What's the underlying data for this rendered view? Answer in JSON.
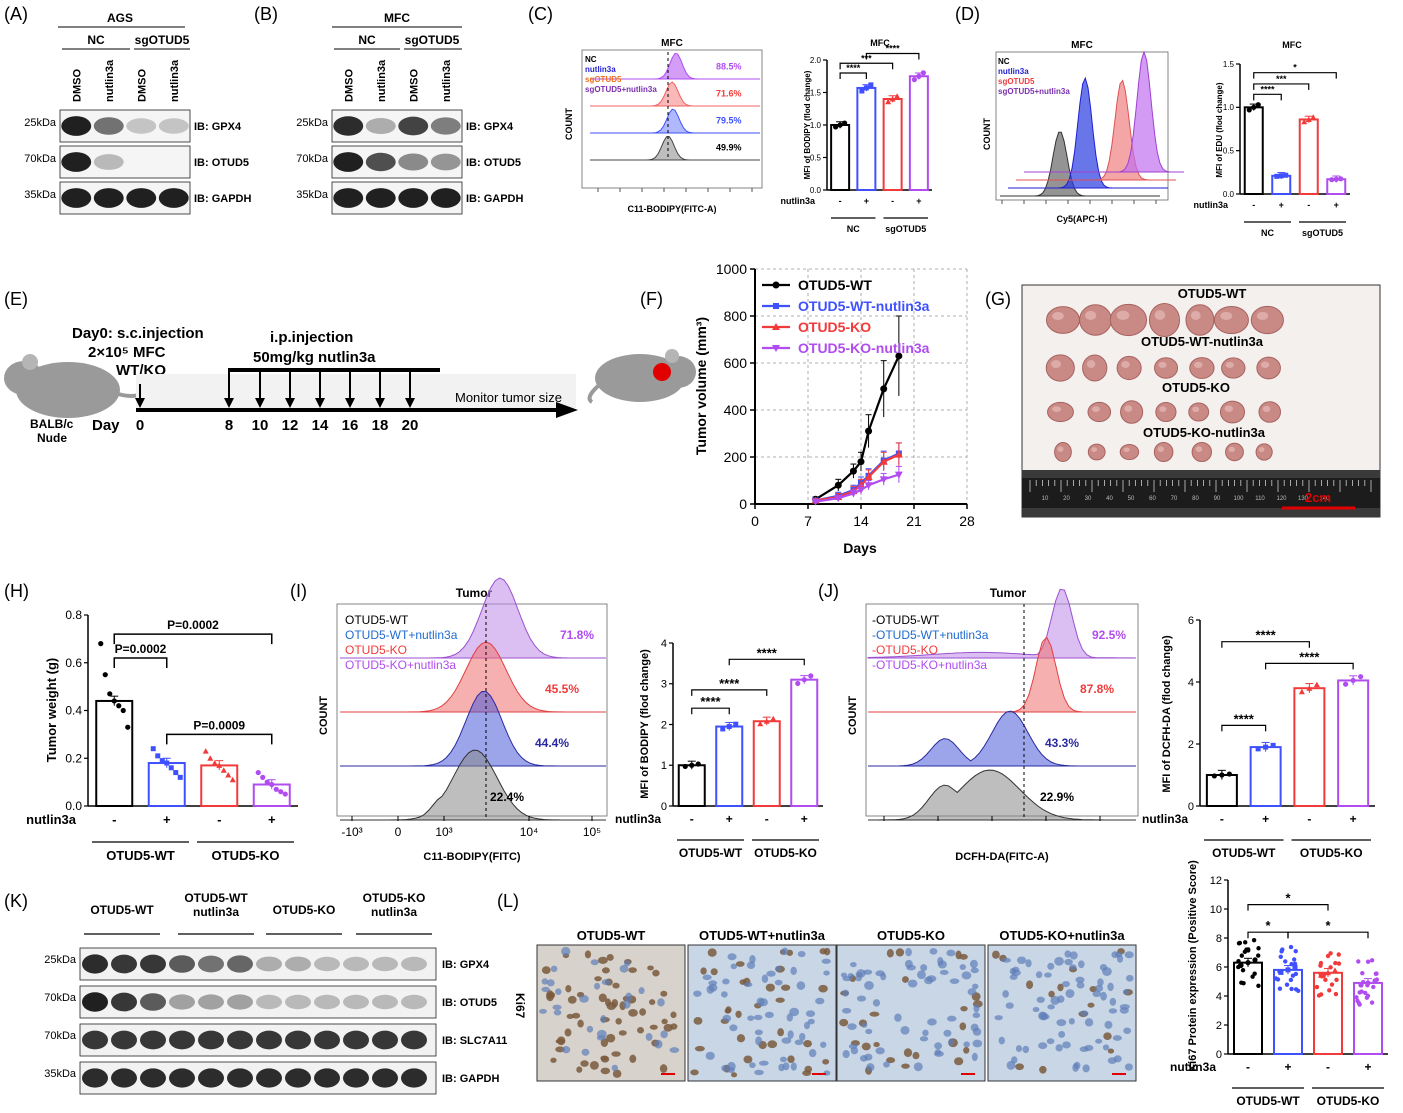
{
  "colors": {
    "wt": "#000000",
    "wt_n": "#3f51ff",
    "ko": "#f23a3a",
    "ko_n": "#b04cf0",
    "nc_blue": "#1f1fd0",
    "sg_orange": "#f07020",
    "sg_purple": "#7a2fb0",
    "scale_red": "#e00000"
  },
  "panel_labels": [
    "(A)",
    "(B)",
    "(C)",
    "(D)",
    "(E)",
    "(F)",
    "(G)",
    "(H)",
    "(I)",
    "(J)",
    "(K)",
    "(L)"
  ],
  "panelA": {
    "title": "AGS",
    "groups": [
      "NC",
      "sgOTUD5"
    ],
    "lanes": [
      "DMSO",
      "nutlin3a",
      "DMSO",
      "nutlin3a"
    ],
    "markers": [
      "25kDa",
      "70kDa",
      "35kDa"
    ],
    "blots": [
      "IB: GPX4",
      "IB: OTUD5",
      "IB: GAPDH"
    ],
    "bands": [
      [
        0.95,
        0.6,
        0.25,
        0.25
      ],
      [
        0.95,
        0.3,
        0.0,
        0.0
      ],
      [
        0.95,
        0.95,
        0.95,
        0.95
      ]
    ]
  },
  "panelB": {
    "title": "MFC",
    "groups": [
      "NC",
      "sgOTUD5"
    ],
    "lanes": [
      "DMSO",
      "nutlin3a",
      "DMSO",
      "nutlin3a"
    ],
    "markers": [
      "25kDa",
      "70kDa",
      "35kDa"
    ],
    "blots": [
      "IB: GPX4",
      "IB: OTUD5",
      "IB: GAPDH"
    ],
    "bands": [
      [
        0.9,
        0.35,
        0.8,
        0.55
      ],
      [
        0.95,
        0.75,
        0.5,
        0.45
      ],
      [
        0.95,
        0.95,
        0.95,
        0.95
      ]
    ]
  },
  "panelC": {
    "hist_title": "MFC",
    "ylabel": "COUNT",
    "xlabel": "C11-BODIPY(FITC-A)",
    "legend": [
      "NC",
      "nutlin3a",
      "sgOTUD5",
      "sgOTUD5+nutlin3a"
    ],
    "percents": [
      "88.5%",
      "71.6%",
      "79.5%",
      "49.9%"
    ],
    "chart_data": {
      "type": "bar",
      "title": "MFC",
      "ylabel": "MFI of BODIPY (flod change)",
      "ylim": [
        0,
        2.0
      ],
      "yticks": [
        "0.0",
        "0.5",
        "1.0",
        "1.5",
        "2.0"
      ],
      "treatment_label": "nutlin3a",
      "treatment": [
        "-",
        "+",
        "-",
        "+"
      ],
      "groups": [
        "NC",
        "sgOTUD5"
      ],
      "values": [
        1.0,
        1.57,
        1.4,
        1.75
      ],
      "sig": [
        "****",
        "***",
        "****"
      ]
    }
  },
  "panelD": {
    "hist_title": "MFC",
    "ylabel": "COUNT",
    "xlabel": "Cy5(APC-H)",
    "legend": [
      "NC",
      "nutlin3a",
      "sgOTUD5",
      "sgOTUD5+nutlin3a"
    ],
    "chart_data": {
      "type": "bar",
      "title": "MFC",
      "ylabel": "MFI of EDU (flod change)",
      "ylim": [
        0,
        1.5
      ],
      "yticks": [
        "0.0",
        "0.5",
        "1.0",
        "1.5"
      ],
      "treatment_label": "nutlin3a",
      "treatment": [
        "-",
        "+",
        "-",
        "+"
      ],
      "groups": [
        "NC",
        "sgOTUD5"
      ],
      "values": [
        1.0,
        0.21,
        0.86,
        0.17
      ],
      "sig": [
        "****",
        "***",
        "*"
      ]
    }
  },
  "panelE": {
    "day0_line1": "Day0: s.c.injection",
    "day0_line2": "2×10⁵ MFC",
    "day0_line3": "WT/KO",
    "ip_line1": "i.p.injection",
    "ip_line2": "50mg/kg nutlin3a",
    "mouse_label1": "BALB/c",
    "mouse_label2": "Nude",
    "day_label": "Day",
    "days": [
      "0",
      "8",
      "10",
      "12",
      "14",
      "16",
      "18",
      "20"
    ],
    "monitor": "Monitor tumor size"
  },
  "panelF": {
    "chart_data": {
      "type": "line",
      "xlabel": "Days",
      "ylabel": "Tumor volume (mm³)",
      "xlim": [
        0,
        28
      ],
      "ylim": [
        0,
        1000
      ],
      "xticks": [
        "0",
        "7",
        "14",
        "21",
        "28"
      ],
      "yticks": [
        "0",
        "200",
        "400",
        "600",
        "800",
        "1000"
      ],
      "x": [
        8,
        11,
        13,
        14,
        15,
        17,
        19
      ],
      "series": [
        {
          "name": "OTUD5-WT",
          "values": [
            20,
            80,
            140,
            180,
            310,
            490,
            630
          ],
          "err": [
            10,
            25,
            30,
            40,
            70,
            120,
            170
          ]
        },
        {
          "name": "OTUD5-WT-nutlin3a",
          "values": [
            15,
            35,
            60,
            90,
            120,
            185,
            215
          ],
          "err": [
            8,
            15,
            20,
            25,
            30,
            40,
            45
          ]
        },
        {
          "name": "OTUD5-KO",
          "values": [
            15,
            30,
            55,
            80,
            115,
            180,
            210
          ],
          "err": [
            8,
            15,
            20,
            25,
            30,
            40,
            50
          ]
        },
        {
          "name": "OTUD5-KO-nutlin3a",
          "values": [
            10,
            25,
            45,
            60,
            80,
            105,
            125
          ],
          "err": [
            5,
            10,
            15,
            20,
            20,
            25,
            35
          ]
        }
      ]
    }
  },
  "panelG": {
    "rows": [
      "OTUD5-WT",
      "OTUD5-WT-nutlin3a",
      "OTUD5-KO",
      "OTUD5-KO-nutlin3a"
    ],
    "scale": "2cm",
    "ruler_numbers": [
      "10",
      "20",
      "30",
      "40",
      "50",
      "60",
      "70",
      "80",
      "90",
      "100",
      "110",
      "120",
      "130",
      "140"
    ]
  },
  "panelH": {
    "chart_data": {
      "type": "bar",
      "ylabel": "Tumor weight (g)",
      "ylim": [
        0,
        0.8
      ],
      "yticks": [
        "0.0",
        "0.2",
        "0.4",
        "0.6",
        "0.8"
      ],
      "treatment_label": "nutlin3a",
      "treatment": [
        "-",
        "+",
        "-",
        "+"
      ],
      "groups": [
        "OTUD5-WT",
        "OTUD5-KO"
      ],
      "values": [
        0.44,
        0.18,
        0.17,
        0.09
      ],
      "points": [
        [
          0.68,
          0.55,
          0.47,
          0.44,
          0.42,
          0.4,
          0.33
        ],
        [
          0.24,
          0.21,
          0.19,
          0.18,
          0.16,
          0.14,
          0.12
        ],
        [
          0.23,
          0.2,
          0.18,
          0.17,
          0.15,
          0.13,
          0.11
        ],
        [
          0.14,
          0.12,
          0.1,
          0.09,
          0.07,
          0.06,
          0.05
        ]
      ],
      "pvalues": [
        "P=0.0002",
        "P=0.0002",
        "P=0.0009"
      ]
    }
  },
  "panelI": {
    "hist_title": "Tumor",
    "ylabel": "COUNT",
    "xlabel": "C11-BODIPY(FITC)",
    "legend": [
      "OTUD5-WT",
      "OTUD5-WT+nutlin3a",
      "OTUD5-KO",
      "OTUD5-KO+nutlin3a"
    ],
    "percents": [
      "71.8%",
      "45.5%",
      "44.4%",
      "22.4%"
    ],
    "xticks": [
      "-10³",
      "0",
      "10³",
      "10⁴",
      "10⁵"
    ],
    "chart_data": {
      "type": "bar",
      "ylabel": "MFI of BODIPY (flod change)",
      "ylim": [
        0,
        4
      ],
      "yticks": [
        "0",
        "1",
        "2",
        "3",
        "4"
      ],
      "treatment_label": "nutlin3a",
      "treatment": [
        "-",
        "+",
        "-",
        "+"
      ],
      "groups": [
        "OTUD5-WT",
        "OTUD5-KO"
      ],
      "values": [
        1.0,
        1.95,
        2.08,
        3.1
      ],
      "sig": [
        "****",
        "****",
        "****"
      ]
    }
  },
  "panelJ": {
    "hist_title": "Tumor",
    "ylabel": "COUNT",
    "xlabel": "DCFH-DA(FITC-A)",
    "legend": [
      "-OTUD5-WT",
      "-OTUD5-WT+nutlin3a",
      "-OTUD5-KO",
      "-OTUD5-KO+nutlin3a"
    ],
    "percents": [
      "92.5%",
      "87.8%",
      "43.3%",
      "22.9%"
    ],
    "chart_data": {
      "type": "bar",
      "ylabel": "MFI of DCFH-DA (flod change)",
      "ylim": [
        0,
        6
      ],
      "yticks": [
        "0",
        "2",
        "4",
        "6"
      ],
      "treatment_label": "nutlin3a",
      "treatment": [
        "-",
        "+",
        "-",
        "+"
      ],
      "groups": [
        "OTUD5-WT",
        "OTUD5-KO"
      ],
      "values": [
        1.0,
        1.9,
        3.8,
        4.05
      ],
      "sig": [
        "****",
        "****",
        "****"
      ]
    }
  },
  "panelK": {
    "groups": [
      "OTUD5-WT",
      "OTUD5-WT nutlin3a",
      "OTUD5-KO",
      "OTUD5-KO nutlin3a"
    ],
    "markers": [
      "25kDa",
      "70kDa",
      "70kDa",
      "35kDa"
    ],
    "blots": [
      "IB: GPX4",
      "IB: OTUD5",
      "IB: SLC7A11",
      "IB: GAPDH"
    ]
  },
  "panelL": {
    "side_label": "Ki67",
    "images": [
      "OTUD5-WT",
      "OTUD5-WT+nutlin3a",
      "OTUD5-KO",
      "OTUD5-KO+nutlin3a"
    ],
    "chart_data": {
      "type": "bar",
      "ylabel": "Ki67 Protein expression (Positive Score)",
      "ylim": [
        0,
        12
      ],
      "yticks": [
        "0",
        "2",
        "4",
        "6",
        "8",
        "10",
        "12"
      ],
      "treatment_label": "nutlin3a",
      "treatment": [
        "-",
        "+",
        "-",
        "+"
      ],
      "groups": [
        "OTUD5-WT",
        "OTUD5-KO"
      ],
      "values": [
        6.3,
        5.8,
        5.6,
        4.9
      ],
      "sig": [
        "*",
        "*",
        "*"
      ]
    }
  }
}
